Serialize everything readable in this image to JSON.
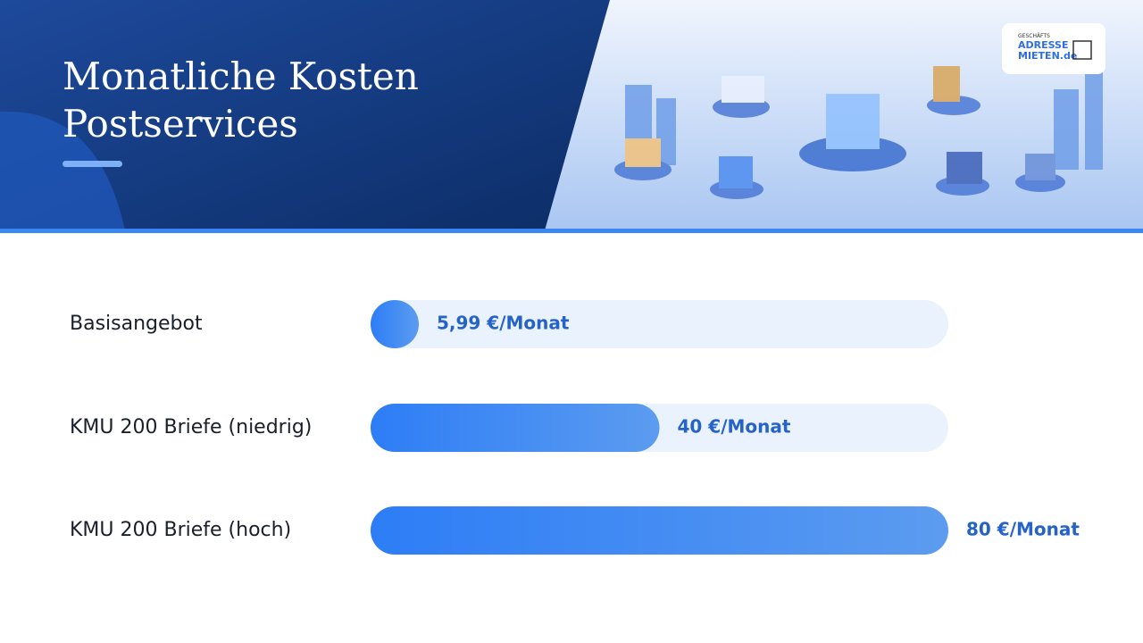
{
  "header": {
    "logo": {
      "line1": "GESCHÄFTS",
      "line2": "ADRESSE",
      "line3": "MIETEN.de"
    }
  },
  "chart_data": {
    "type": "bar",
    "orientation": "horizontal",
    "title": "Monatliche Kosten Postservices",
    "categories": [
      "Basisangebot",
      "KMU 200 Briefe (niedrig)",
      "KMU 200 Briefe (hoch)"
    ],
    "values": [
      5.99,
      40,
      80
    ],
    "value_labels": [
      "5,99 €/Monat",
      "40 €/Monat",
      "80 €/Monat"
    ],
    "xlim": [
      0,
      80
    ],
    "color": "#3b86f5"
  }
}
